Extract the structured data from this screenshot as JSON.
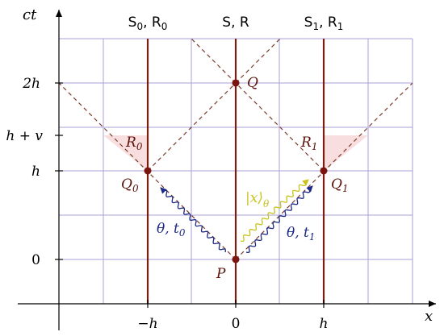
{
  "axes": {
    "x_label": "x",
    "ct_label": "ct",
    "x_ticks": [
      {
        "value": -1,
        "label": "−h"
      },
      {
        "value": 0,
        "label": "0"
      },
      {
        "value": 1,
        "label": "h"
      }
    ],
    "y_ticks": [
      {
        "value": 0,
        "label": "0"
      },
      {
        "value": 1,
        "label": "h"
      },
      {
        "value": 1.5,
        "label": "h + v"
      },
      {
        "value": 2,
        "label": "2h"
      }
    ]
  },
  "worldlines": [
    {
      "x": -1,
      "label_main": "S",
      "sub1": "0",
      "sep": ", R",
      "sub2": "0"
    },
    {
      "x": 0,
      "label_main": "S, R",
      "sub1": "",
      "sep": "",
      "sub2": ""
    },
    {
      "x": 1,
      "label_main": "S",
      "sub1": "1",
      "sep": ", R",
      "sub2": "1"
    }
  ],
  "events": [
    {
      "id": "P",
      "label": "P",
      "x": 0,
      "ct": 0
    },
    {
      "id": "Q",
      "label": "Q",
      "x": 0,
      "ct": 2
    },
    {
      "id": "Q0",
      "label": "Q",
      "sub": "0",
      "x": -1,
      "ct": 1
    },
    {
      "id": "Q1",
      "label": "Q",
      "sub": "1",
      "x": 1,
      "ct": 1
    }
  ],
  "regions": [
    {
      "label": "R",
      "sub": "0"
    },
    {
      "label": "R",
      "sub": "1"
    }
  ],
  "signals": [
    {
      "label": "θ, t",
      "sub": "0"
    },
    {
      "label": "θ, t",
      "sub": "1"
    },
    {
      "label": "|x⟩",
      "sub": "θ"
    }
  ],
  "colors": {
    "grid": "#a9a2d8",
    "worldline": "#7a1e12",
    "lightcone": "#7a3a2a",
    "event": "#7a1510",
    "region_fill": "#f8dede",
    "signal_blue": "#1d2a86",
    "signal_yellow": "#c8c21a",
    "axis": "#000000"
  }
}
